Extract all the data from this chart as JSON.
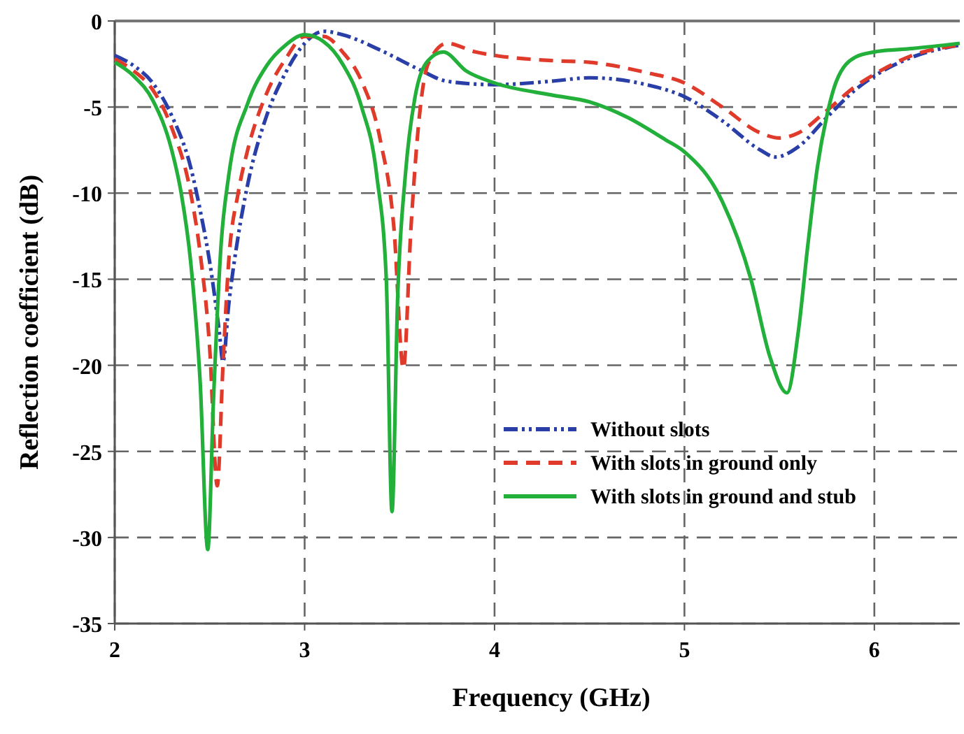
{
  "chart_data": {
    "type": "line",
    "xlabel": "Frequency (GHz)",
    "ylabel": "Reflection coefficient (dB)",
    "xlim": [
      2,
      6.45
    ],
    "xticks": [
      2,
      3,
      4,
      5,
      6
    ],
    "ylim": [
      -35,
      0
    ],
    "yticks": [
      0,
      -5,
      -10,
      -15,
      -20,
      -25,
      -30,
      -35
    ],
    "grid": true,
    "legend": "bottom right",
    "marker": "none",
    "series": [
      {
        "name": "Without slots",
        "color": "#2a3ea8",
        "line_style": "dotted",
        "x": [
          2.0,
          2.1,
          2.2,
          2.3,
          2.4,
          2.45,
          2.5,
          2.55,
          2.57,
          2.6,
          2.65,
          2.7,
          2.8,
          2.9,
          3.0,
          3.1,
          3.2,
          3.4,
          3.6,
          3.75,
          4.0,
          4.3,
          4.5,
          4.8,
          5.0,
          5.2,
          5.4,
          5.48,
          5.6,
          5.75,
          5.9,
          6.0,
          6.2,
          6.45
        ],
        "values": [
          -2.0,
          -2.6,
          -3.6,
          -5.5,
          -8.5,
          -11,
          -14,
          -18,
          -19.8,
          -16.5,
          -12.5,
          -9.5,
          -5.5,
          -3,
          -1.3,
          -0.6,
          -0.8,
          -1.7,
          -2.8,
          -3.5,
          -3.7,
          -3.5,
          -3.3,
          -3.7,
          -4.4,
          -5.8,
          -7.5,
          -7.9,
          -7.3,
          -5.6,
          -4,
          -3.2,
          -2.1,
          -1.4
        ]
      },
      {
        "name": "With slots in ground only",
        "color": "#e03a2a",
        "line_style": "dashed",
        "x": [
          2.0,
          2.1,
          2.2,
          2.3,
          2.4,
          2.45,
          2.5,
          2.54,
          2.57,
          2.6,
          2.65,
          2.7,
          2.8,
          2.9,
          3.0,
          3.1,
          3.2,
          3.3,
          3.4,
          3.47,
          3.52,
          3.56,
          3.6,
          3.65,
          3.75,
          3.9,
          4.0,
          4.3,
          4.5,
          4.8,
          5.0,
          5.2,
          5.4,
          5.5,
          5.6,
          5.75,
          5.9,
          6.0,
          6.2,
          6.45
        ],
        "values": [
          -2.2,
          -2.9,
          -4.0,
          -6.2,
          -10,
          -13.5,
          -19,
          -27,
          -20,
          -14,
          -10,
          -7.5,
          -4.2,
          -2.2,
          -0.9,
          -0.9,
          -1.8,
          -3.5,
          -7,
          -12,
          -20.2,
          -12,
          -6,
          -2.5,
          -1.3,
          -1.8,
          -2.0,
          -2.3,
          -2.4,
          -3,
          -3.6,
          -5,
          -6.5,
          -6.8,
          -6.5,
          -5.2,
          -3.8,
          -3.1,
          -2.0,
          -1.4
        ]
      },
      {
        "name": "With slots in ground and stub",
        "color": "#22b03a",
        "line_style": "solid",
        "x": [
          2.0,
          2.1,
          2.2,
          2.3,
          2.35,
          2.4,
          2.45,
          2.49,
          2.52,
          2.56,
          2.6,
          2.7,
          2.8,
          2.9,
          3.0,
          3.1,
          3.2,
          3.3,
          3.38,
          3.43,
          3.46,
          3.49,
          3.53,
          3.58,
          3.65,
          3.73,
          3.85,
          4.0,
          4.3,
          4.5,
          4.7,
          4.9,
          5.0,
          5.2,
          5.35,
          5.45,
          5.54,
          5.6,
          5.65,
          5.7,
          5.75,
          5.8,
          5.9,
          6.0,
          6.2,
          6.45
        ],
        "values": [
          -2.4,
          -3.2,
          -4.6,
          -7.5,
          -10,
          -14,
          -21,
          -30.7,
          -22,
          -13,
          -9,
          -4.8,
          -2.6,
          -1.4,
          -0.8,
          -1.2,
          -2.5,
          -5,
          -9,
          -15,
          -28.5,
          -16,
          -9,
          -4.5,
          -2.3,
          -1.8,
          -2.9,
          -3.6,
          -4.3,
          -4.7,
          -5.6,
          -6.9,
          -7.6,
          -10.5,
          -15,
          -19.5,
          -21.6,
          -18,
          -13,
          -8.5,
          -5.5,
          -3.5,
          -2.1,
          -1.8,
          -1.6,
          -1.3
        ]
      }
    ]
  }
}
